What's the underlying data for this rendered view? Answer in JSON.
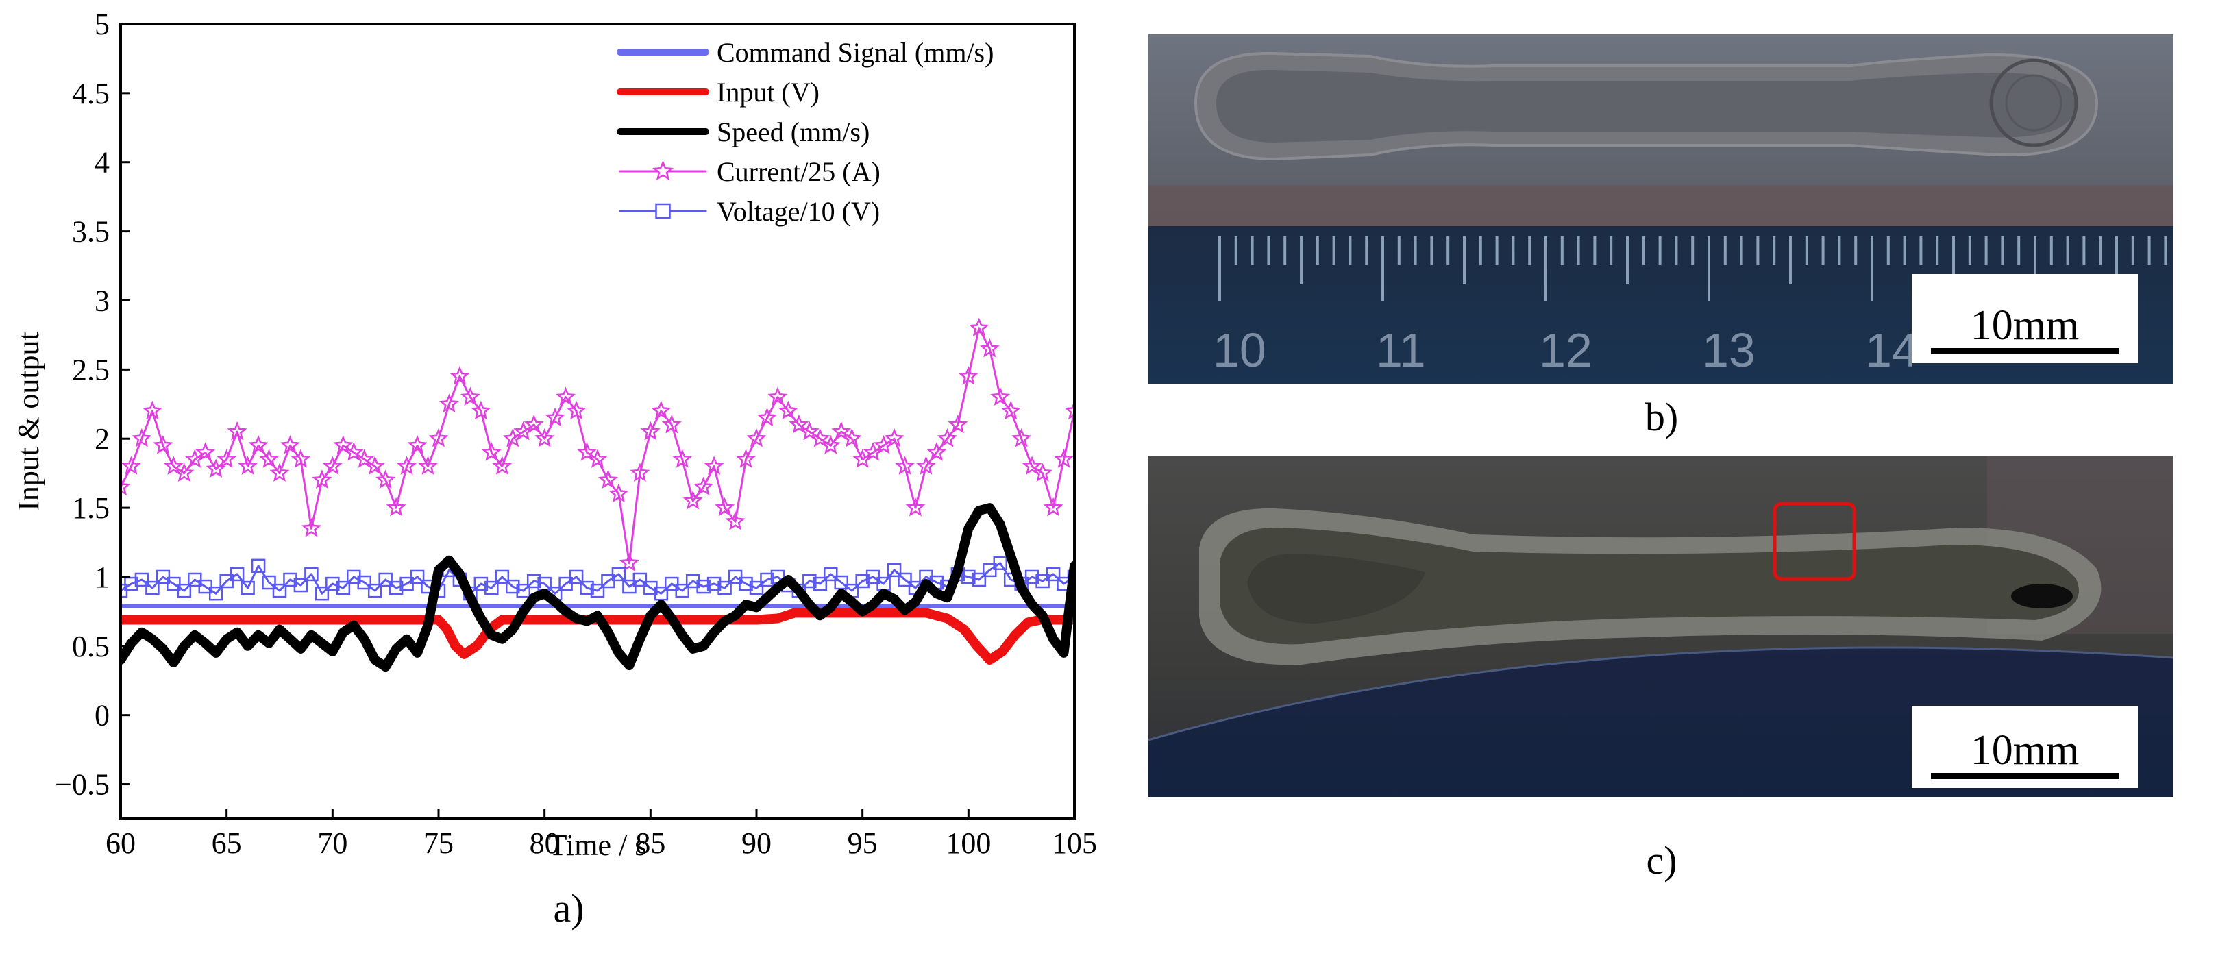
{
  "chart_data": {
    "type": "line",
    "xlabel": "Time / s",
    "ylabel": "Input & output",
    "xlim": [
      60,
      105
    ],
    "ylim": [
      -0.75,
      5
    ],
    "xticks": [
      60,
      65,
      70,
      75,
      80,
      85,
      90,
      95,
      100,
      105
    ],
    "yticks": [
      -0.5,
      0,
      0.5,
      1,
      1.5,
      2,
      2.5,
      3,
      3.5,
      4,
      4.5,
      5
    ],
    "ytick_labels": [
      "−0.5",
      "0",
      "0.5",
      "1",
      "1.5",
      "2",
      "2.5",
      "3",
      "3.5",
      "4",
      "4.5",
      "5"
    ],
    "legend_position": "top-right",
    "series": [
      {
        "name": "Command Signal (mm/s)",
        "color": "#6b6bf0",
        "style": "thick-line",
        "x": [
          60,
          105
        ],
        "y": [
          0.79,
          0.79
        ]
      },
      {
        "name": "Input (V)",
        "color": "#ee1111",
        "style": "thick-line",
        "x": [
          60,
          75,
          75.4,
          75.8,
          76.2,
          76.8,
          77.4,
          78,
          90,
          91,
          91.8,
          98,
          99,
          99.8,
          100.4,
          101,
          101.6,
          102.2,
          102.8,
          103.4,
          104,
          105
        ],
        "y": [
          0.69,
          0.69,
          0.62,
          0.5,
          0.44,
          0.5,
          0.62,
          0.69,
          0.69,
          0.7,
          0.74,
          0.74,
          0.7,
          0.62,
          0.5,
          0.4,
          0.46,
          0.58,
          0.67,
          0.69,
          0.69,
          0.69
        ]
      },
      {
        "name": "Speed (mm/s)",
        "color": "#000000",
        "style": "thick-line",
        "x": [
          60,
          60.5,
          61,
          61.5,
          62,
          62.5,
          63,
          63.5,
          64,
          64.5,
          65,
          65.5,
          66,
          66.5,
          67,
          67.5,
          68,
          68.5,
          69,
          69.5,
          70,
          70.5,
          71,
          71.5,
          72,
          72.5,
          73,
          73.5,
          74,
          74.5,
          75,
          75.5,
          76,
          76.5,
          77,
          77.5,
          78,
          78.5,
          79,
          79.5,
          80,
          80.5,
          81,
          81.5,
          82,
          82.5,
          83,
          83.5,
          84,
          84.5,
          85,
          85.5,
          86,
          86.5,
          87,
          87.5,
          88,
          88.5,
          89,
          89.5,
          90,
          90.5,
          91,
          91.5,
          92,
          92.5,
          93,
          93.5,
          94,
          94.5,
          95,
          95.5,
          96,
          96.5,
          97,
          97.5,
          98,
          98.5,
          99,
          99.5,
          100,
          100.5,
          101,
          101.5,
          102,
          102.5,
          103,
          103.5,
          104,
          104.5,
          105
        ],
        "y": [
          0.4,
          0.52,
          0.6,
          0.55,
          0.48,
          0.38,
          0.5,
          0.58,
          0.52,
          0.45,
          0.55,
          0.6,
          0.5,
          0.58,
          0.52,
          0.62,
          0.55,
          0.48,
          0.58,
          0.52,
          0.46,
          0.6,
          0.65,
          0.55,
          0.4,
          0.35,
          0.48,
          0.55,
          0.45,
          0.65,
          1.05,
          1.12,
          1.02,
          0.85,
          0.7,
          0.58,
          0.55,
          0.62,
          0.75,
          0.85,
          0.88,
          0.82,
          0.75,
          0.7,
          0.68,
          0.72,
          0.6,
          0.45,
          0.36,
          0.55,
          0.72,
          0.8,
          0.7,
          0.58,
          0.48,
          0.5,
          0.6,
          0.68,
          0.72,
          0.8,
          0.78,
          0.85,
          0.92,
          0.98,
          0.9,
          0.8,
          0.72,
          0.78,
          0.88,
          0.82,
          0.75,
          0.8,
          0.88,
          0.84,
          0.76,
          0.82,
          0.95,
          0.88,
          0.85,
          1.05,
          1.35,
          1.48,
          1.5,
          1.38,
          1.15,
          0.92,
          0.8,
          0.72,
          0.55,
          0.45,
          1.08
        ]
      },
      {
        "name": "Current/25 (A)",
        "color": "#e040e0",
        "style": "line-star",
        "x": [
          60,
          60.5,
          61,
          61.5,
          62,
          62.5,
          63,
          63.5,
          64,
          64.5,
          65,
          65.5,
          66,
          66.5,
          67,
          67.5,
          68,
          68.5,
          69,
          69.5,
          70,
          70.5,
          71,
          71.5,
          72,
          72.5,
          73,
          73.5,
          74,
          74.5,
          75,
          75.5,
          76,
          76.5,
          77,
          77.5,
          78,
          78.5,
          79,
          79.5,
          80,
          80.5,
          81,
          81.5,
          82,
          82.5,
          83,
          83.5,
          84,
          84.5,
          85,
          85.5,
          86,
          86.5,
          87,
          87.5,
          88,
          88.5,
          89,
          89.5,
          90,
          90.5,
          91,
          91.5,
          92,
          92.5,
          93,
          93.5,
          94,
          94.5,
          95,
          95.5,
          96,
          96.5,
          97,
          97.5,
          98,
          98.5,
          99,
          99.5,
          100,
          100.5,
          101,
          101.5,
          102,
          102.5,
          103,
          103.5,
          104,
          104.5,
          105
        ],
        "y": [
          1.65,
          1.8,
          2.0,
          2.2,
          1.95,
          1.8,
          1.75,
          1.85,
          1.9,
          1.78,
          1.85,
          2.05,
          1.8,
          1.95,
          1.85,
          1.75,
          1.95,
          1.85,
          1.35,
          1.7,
          1.8,
          1.95,
          1.9,
          1.85,
          1.8,
          1.7,
          1.5,
          1.8,
          1.95,
          1.8,
          2.0,
          2.25,
          2.45,
          2.3,
          2.2,
          1.9,
          1.8,
          2.0,
          2.05,
          2.1,
          2.0,
          2.15,
          2.3,
          2.2,
          1.9,
          1.85,
          1.7,
          1.6,
          1.1,
          1.75,
          2.05,
          2.2,
          2.1,
          1.85,
          1.55,
          1.65,
          1.8,
          1.5,
          1.4,
          1.85,
          2.0,
          2.15,
          2.3,
          2.2,
          2.1,
          2.05,
          2.0,
          1.95,
          2.05,
          2.0,
          1.85,
          1.9,
          1.95,
          2.0,
          1.8,
          1.5,
          1.8,
          1.9,
          2.0,
          2.1,
          2.45,
          2.8,
          2.65,
          2.3,
          2.2,
          2.0,
          1.8,
          1.75,
          1.5,
          1.85,
          2.2
        ]
      },
      {
        "name": "Voltage/10 (V)",
        "color": "#5a5af2",
        "style": "line-square",
        "x": [
          60,
          60.5,
          61,
          61.5,
          62,
          62.5,
          63,
          63.5,
          64,
          64.5,
          65,
          65.5,
          66,
          66.5,
          67,
          67.5,
          68,
          68.5,
          69,
          69.5,
          70,
          70.5,
          71,
          71.5,
          72,
          72.5,
          73,
          73.5,
          74,
          74.5,
          75,
          75.5,
          76,
          76.5,
          77,
          77.5,
          78,
          78.5,
          79,
          79.5,
          80,
          80.5,
          81,
          81.5,
          82,
          82.5,
          83,
          83.5,
          84,
          84.5,
          85,
          85.5,
          86,
          86.5,
          87,
          87.5,
          88,
          88.5,
          89,
          89.5,
          90,
          90.5,
          91,
          91.5,
          92,
          92.5,
          93,
          93.5,
          94,
          94.5,
          95,
          95.5,
          96,
          96.5,
          97,
          97.5,
          98,
          98.5,
          99,
          99.5,
          100,
          100.5,
          101,
          101.5,
          102,
          102.5,
          103,
          103.5,
          104,
          104.5,
          105
        ],
        "y": [
          0.9,
          0.95,
          0.98,
          0.92,
          1.0,
          0.95,
          0.9,
          0.98,
          0.93,
          0.88,
          0.97,
          1.02,
          0.92,
          1.08,
          0.96,
          0.9,
          0.98,
          0.94,
          1.02,
          0.88,
          0.95,
          0.92,
          1.0,
          0.96,
          0.9,
          0.98,
          0.92,
          0.95,
          1.0,
          0.93,
          0.9,
          1.05,
          0.98,
          0.88,
          0.95,
          0.92,
          1.0,
          0.93,
          0.9,
          0.97,
          0.95,
          0.88,
          0.95,
          1.0,
          0.92,
          0.9,
          0.97,
          1.02,
          0.93,
          0.98,
          0.92,
          0.88,
          0.95,
          0.9,
          0.97,
          0.93,
          0.95,
          0.92,
          1.0,
          0.95,
          0.92,
          0.98,
          1.0,
          0.94,
          0.9,
          0.97,
          0.95,
          1.02,
          0.96,
          0.9,
          0.97,
          1.0,
          0.95,
          1.05,
          0.98,
          0.92,
          1.0,
          0.96,
          0.93,
          1.02,
          1.0,
          0.98,
          1.05,
          1.1,
          0.98,
          0.95,
          1.0,
          0.97,
          1.02,
          0.95,
          1.0
        ]
      }
    ]
  },
  "panel_labels": {
    "a": "a)",
    "b": "b)",
    "c": "c)"
  },
  "photo_b": {
    "scale_bar_label": "10mm",
    "ruler_numbers": [
      "10",
      "11",
      "12",
      "13",
      "14"
    ]
  },
  "photo_c": {
    "scale_bar_label": "10mm"
  }
}
